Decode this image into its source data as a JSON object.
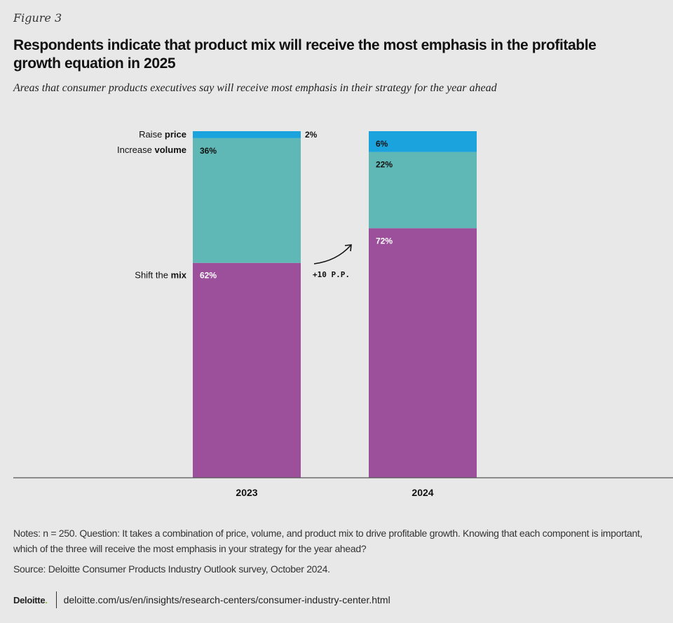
{
  "figure_label": "Figure 3",
  "title": "Respondents indicate that product mix will receive the most emphasis in the profitable growth equation in 2025",
  "subtitle": "Areas that consumer products executives say will receive most emphasis in their strategy for the year ahead",
  "chart_data": {
    "type": "bar",
    "stacked": true,
    "categories": [
      "2023",
      "2024"
    ],
    "series": [
      {
        "name": "Shift the mix",
        "name_plain": "Shift the ",
        "name_bold": "mix",
        "values": [
          62,
          72
        ],
        "labels": [
          "62%",
          "72%"
        ],
        "color": "#9c509c"
      },
      {
        "name": "Increase volume",
        "name_plain": "Increase ",
        "name_bold": "volume",
        "values": [
          36,
          22
        ],
        "labels": [
          "36%",
          "22%"
        ],
        "color": "#5fb8b5"
      },
      {
        "name": "Raise price",
        "name_plain": "Raise ",
        "name_bold": "price",
        "values": [
          2,
          6
        ],
        "labels": [
          "2%",
          "6%"
        ],
        "color": "#1ba3dd"
      }
    ],
    "ylim": [
      0,
      100
    ],
    "grid": false,
    "annotation": "+10 P.P."
  },
  "notes": "Notes: n = 250. Question: It takes a combination of price, volume, and product mix to drive profitable growth. Knowing that each component is important, which of the three will receive the most emphasis in your strategy for the year ahead?",
  "source": "Source: Deloitte Consumer Products Industry Outlook survey, October 2024.",
  "footer": {
    "logo": "Deloitte",
    "logo_dot": ".",
    "url": "deloitte.com/us/en/insights/research-centers/consumer-industry-center.html"
  }
}
